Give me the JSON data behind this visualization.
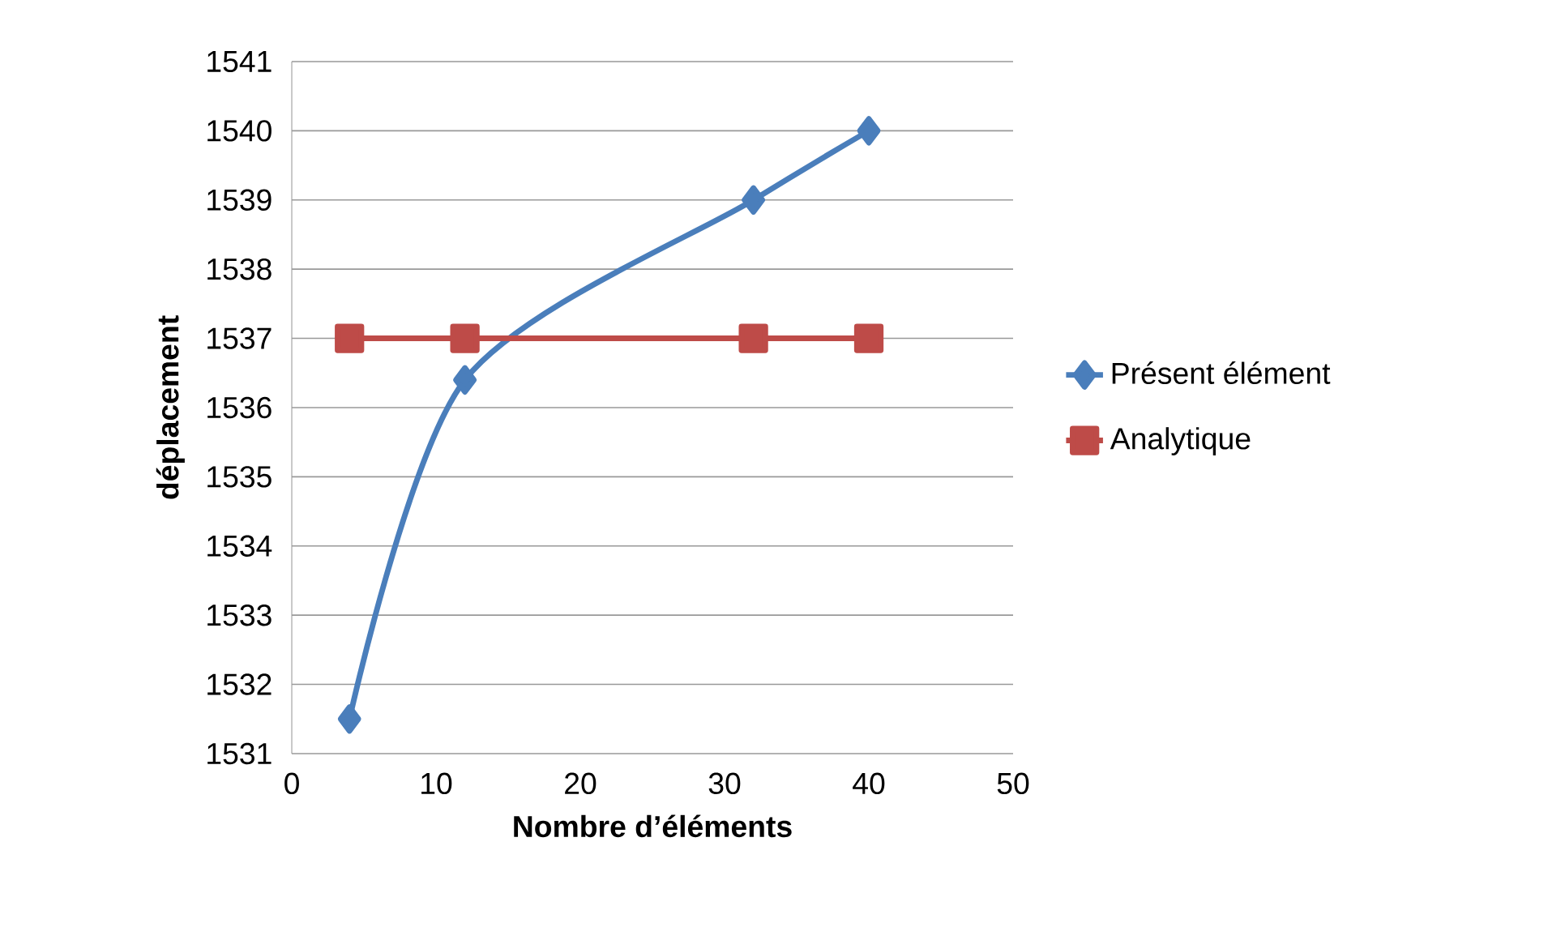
{
  "chart_data": {
    "type": "line",
    "xlabel": "Nombre d’éléments",
    "ylabel": "déplacement",
    "x": [
      4,
      12,
      32,
      40
    ],
    "series": [
      {
        "name": "Présent élément",
        "color": "#4a7ebb",
        "marker": "diamond",
        "values": [
          1531.5,
          1536.4,
          1539,
          1540
        ]
      },
      {
        "name": "Analytique",
        "color": "#be4b48",
        "marker": "square",
        "values": [
          1537,
          1537,
          1537,
          1537
        ]
      }
    ],
    "xlim": [
      0,
      50
    ],
    "xticks": [
      0,
      10,
      20,
      30,
      40,
      50
    ],
    "ylim": [
      1531,
      1541
    ],
    "yticks": [
      1531,
      1532,
      1533,
      1534,
      1535,
      1536,
      1537,
      1538,
      1539,
      1540,
      1541
    ],
    "grid": "y",
    "legend": "right",
    "line_style": "solid"
  }
}
